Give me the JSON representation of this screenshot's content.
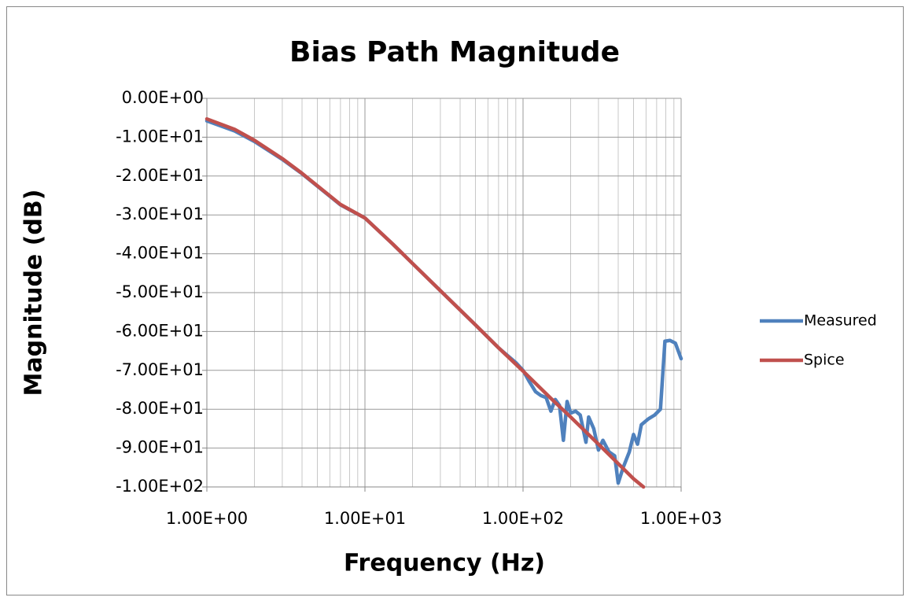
{
  "chart_data": {
    "type": "line",
    "title": "Bias Path Magnitude",
    "x_label": "Frequency (Hz)",
    "y_label": "Magnitude (dB)",
    "log_x": true,
    "grid": true,
    "legend": "right",
    "xlim": [
      1,
      1000
    ],
    "ylim": [
      -100,
      0
    ],
    "xticks": [
      {
        "value": 1,
        "label": "1.00E+00"
      },
      {
        "value": 10,
        "label": "1.00E+01"
      },
      {
        "value": 100,
        "label": "1.00E+02"
      },
      {
        "value": 1000,
        "label": "1.00E+03"
      }
    ],
    "yticks": [
      {
        "value": 0,
        "label": "0.00E+00"
      },
      {
        "value": -10,
        "label": "-1.00E+01"
      },
      {
        "value": -20,
        "label": "-2.00E+01"
      },
      {
        "value": -30,
        "label": "-3.00E+01"
      },
      {
        "value": -40,
        "label": "-4.00E+01"
      },
      {
        "value": -50,
        "label": "-5.00E+01"
      },
      {
        "value": -60,
        "label": "-6.00E+01"
      },
      {
        "value": -70,
        "label": "-7.00E+01"
      },
      {
        "value": -80,
        "label": "-8.00E+01"
      },
      {
        "value": -90,
        "label": "-9.00E+01"
      },
      {
        "value": -100,
        "label": "-1.00E+02"
      }
    ],
    "series": [
      {
        "name": "Measured",
        "color": "#4f81bd",
        "x": [
          1,
          1.5,
          2,
          3,
          4,
          5,
          7,
          10,
          15,
          20,
          30,
          50,
          70,
          90,
          100,
          110,
          120,
          130,
          140,
          150,
          160,
          170,
          180,
          190,
          200,
          215,
          230,
          250,
          260,
          280,
          300,
          320,
          350,
          380,
          400,
          430,
          470,
          500,
          530,
          560,
          620,
          680,
          740,
          790,
          850,
          920,
          1000
        ],
        "values": [
          -5.8,
          -8.4,
          -11.1,
          -15.7,
          -19.4,
          -22.6,
          -27.4,
          -30.8,
          -37.5,
          -42.5,
          -49.5,
          -58.3,
          -64.2,
          -68,
          -70,
          -73,
          -75.5,
          -76.5,
          -77,
          -80.5,
          -77.5,
          -79,
          -88,
          -78,
          -81,
          -80.5,
          -81.5,
          -88.5,
          -82,
          -85,
          -90.5,
          -88,
          -91,
          -92,
          -99,
          -95,
          -91,
          -86.5,
          -89,
          -84,
          -82.5,
          -81.5,
          -80,
          -62.5,
          -62.3,
          -63,
          -67
        ]
      },
      {
        "name": "Spice",
        "color": "#c0504d",
        "x": [
          1,
          1.5,
          2,
          3,
          4,
          5,
          7,
          10,
          15,
          20,
          30,
          50,
          70,
          100,
          150,
          200,
          300,
          400,
          500,
          578
        ],
        "values": [
          -5.3,
          -8,
          -10.8,
          -15.5,
          -19.3,
          -22.5,
          -27.3,
          -30.8,
          -37.5,
          -42.5,
          -49.5,
          -58.3,
          -64.2,
          -70.2,
          -77.2,
          -82,
          -89,
          -94,
          -97.9,
          -100
        ]
      }
    ]
  }
}
